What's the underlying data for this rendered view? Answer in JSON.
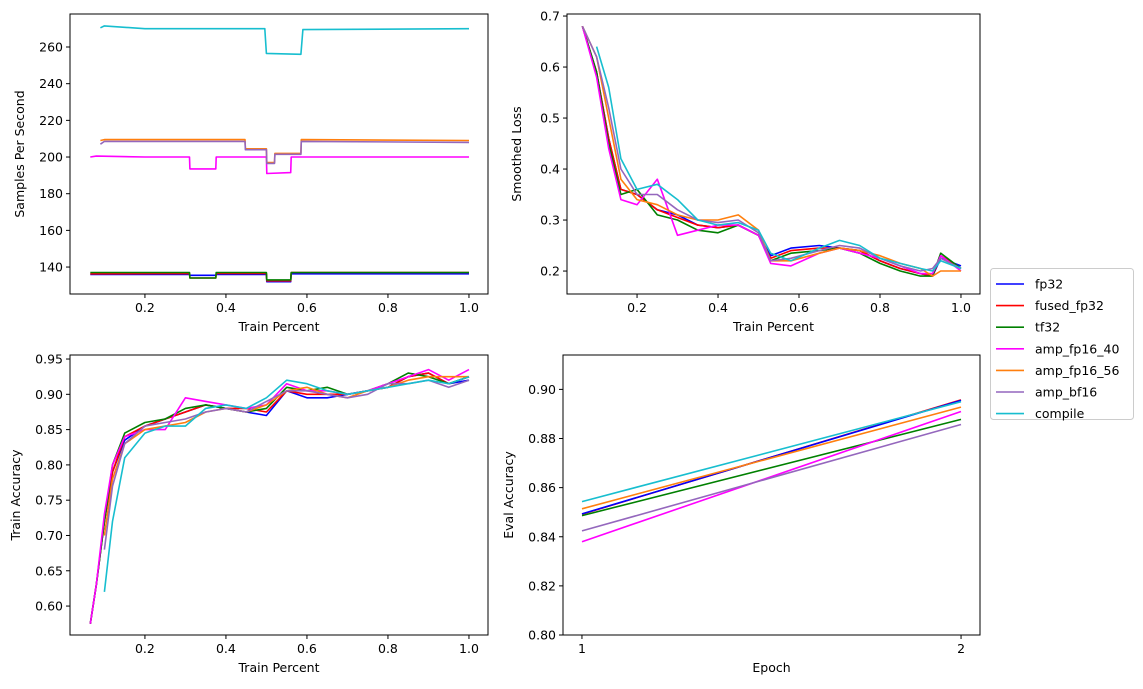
{
  "legend": {
    "placement": "right-center",
    "entries": [
      "fp32",
      "fused_fp32",
      "tf32",
      "amp_fp16_40",
      "amp_fp16_56",
      "amp_bf16",
      "compile"
    ]
  },
  "colors": {
    "fp32": "#0000ff",
    "fused_fp32": "#ff0000",
    "tf32": "#008000",
    "amp_fp16_40": "#ff00ff",
    "amp_fp16_56": "#ff7f0e",
    "amp_bf16": "#9467bd",
    "compile": "#17becf"
  },
  "chart_data": [
    {
      "id": "throughput",
      "type": "line",
      "title": "",
      "xlabel": "Train Percent",
      "ylabel": "Samples Per Second",
      "xlim": [
        0.015,
        1.047
      ],
      "ylim": [
        125.3,
        278
      ],
      "xticks": [
        0.2,
        0.4,
        0.6,
        0.8,
        1.0
      ],
      "xtick_labels": [
        "0.2",
        "0.4",
        "0.6",
        "0.8",
        "1.0"
      ],
      "yticks": [
        140,
        160,
        180,
        200,
        220,
        240,
        260
      ],
      "ytick_labels": [
        "140",
        "160",
        "180",
        "200",
        "220",
        "240",
        "260"
      ],
      "series": [
        {
          "name": "fp32",
          "x": [
            0.065,
            0.31,
            0.311,
            0.375,
            0.376,
            0.5,
            0.501,
            0.56,
            0.561,
            1.0
          ],
          "y": [
            136,
            136,
            135.5,
            135.5,
            136,
            136,
            132,
            132,
            136.3,
            136.3
          ]
        },
        {
          "name": "fused_fp32",
          "x": [
            0.065,
            0.31,
            0.311,
            0.375,
            0.376,
            0.5,
            0.501,
            0.56,
            0.561,
            1.0
          ],
          "y": [
            136.3,
            136.5,
            134,
            134,
            136.5,
            136.5,
            132.5,
            132.5,
            137,
            137
          ]
        },
        {
          "name": "tf32",
          "x": [
            0.065,
            0.31,
            0.311,
            0.375,
            0.376,
            0.5,
            0.501,
            0.56,
            0.561,
            1.0
          ],
          "y": [
            137,
            137,
            134,
            134,
            137,
            137,
            133,
            133,
            137,
            137
          ]
        },
        {
          "name": "amp_fp16_40",
          "x": [
            0.065,
            0.08,
            0.2,
            0.31,
            0.311,
            0.375,
            0.376,
            0.5,
            0.501,
            0.56,
            0.561,
            1.0
          ],
          "y": [
            200,
            200.5,
            200,
            200,
            193.5,
            193.5,
            200,
            200,
            191,
            191.5,
            200,
            200
          ]
        },
        {
          "name": "amp_fp16_56",
          "x": [
            0.09,
            0.1,
            0.447,
            0.448,
            0.5,
            0.501,
            0.52,
            0.521,
            0.585,
            0.586,
            1.0
          ],
          "y": [
            209,
            209.5,
            209.5,
            204.5,
            204.5,
            197,
            197,
            202,
            202,
            209.5,
            209
          ]
        },
        {
          "name": "amp_bf16",
          "x": [
            0.09,
            0.1,
            0.447,
            0.448,
            0.5,
            0.501,
            0.52,
            0.521,
            0.585,
            0.586,
            1.0
          ],
          "y": [
            207,
            208.5,
            208.5,
            204,
            204,
            196.5,
            196.5,
            201.5,
            201.5,
            208.5,
            208
          ]
        },
        {
          "name": "compile",
          "x": [
            0.09,
            0.1,
            0.2,
            0.496,
            0.5,
            0.585,
            0.59,
            1.0
          ],
          "y": [
            270.5,
            271.5,
            270,
            270,
            256.5,
            256,
            269.5,
            270
          ]
        }
      ]
    },
    {
      "id": "loss",
      "type": "line",
      "title": "",
      "xlabel": "Train Percent",
      "ylabel": "Smoothed Loss",
      "xlim": [
        0.027,
        1.047
      ],
      "ylim": [
        0.155,
        0.704
      ],
      "xticks": [
        0.2,
        0.4,
        0.6,
        0.8,
        1.0
      ],
      "xtick_labels": [
        "0.2",
        "0.4",
        "0.6",
        "0.8",
        "1.0"
      ],
      "yticks": [
        0.2,
        0.3,
        0.4,
        0.5,
        0.6,
        0.7
      ],
      "ytick_labels": [
        "0.2",
        "0.3",
        "0.4",
        "0.5",
        "0.6",
        "0.7"
      ],
      "x": [
        0.065,
        0.1,
        0.13,
        0.16,
        0.2,
        0.25,
        0.3,
        0.35,
        0.4,
        0.45,
        0.5,
        0.53,
        0.58,
        0.65,
        0.7,
        0.75,
        0.8,
        0.85,
        0.9,
        0.93,
        0.95,
        1.0
      ],
      "series": [
        {
          "name": "fp32",
          "y": [
            0.68,
            0.59,
            0.46,
            0.36,
            0.35,
            0.32,
            0.31,
            0.29,
            0.285,
            0.29,
            0.27,
            0.23,
            0.245,
            0.25,
            0.245,
            0.24,
            0.22,
            0.205,
            0.195,
            0.19,
            0.225,
            0.21
          ]
        },
        {
          "name": "fused_fp32",
          "y": [
            0.68,
            0.59,
            0.46,
            0.36,
            0.35,
            0.32,
            0.305,
            0.29,
            0.285,
            0.29,
            0.27,
            0.225,
            0.24,
            0.245,
            0.245,
            0.24,
            0.22,
            0.205,
            0.195,
            0.19,
            0.23,
            0.205
          ]
        },
        {
          "name": "tf32",
          "y": [
            0.68,
            0.59,
            0.45,
            0.35,
            0.36,
            0.31,
            0.3,
            0.28,
            0.275,
            0.29,
            0.27,
            0.22,
            0.235,
            0.24,
            0.245,
            0.235,
            0.215,
            0.2,
            0.19,
            0.19,
            0.235,
            0.205
          ]
        },
        {
          "name": "amp_fp16_40",
          "y": [
            0.68,
            0.58,
            0.44,
            0.34,
            0.33,
            0.38,
            0.27,
            0.28,
            0.29,
            0.29,
            0.27,
            0.215,
            0.21,
            0.235,
            0.245,
            0.235,
            0.225,
            0.21,
            0.195,
            0.195,
            0.23,
            0.2
          ]
        },
        {
          "name": "amp_fp16_56",
          "y": [
            0.68,
            0.62,
            0.5,
            0.38,
            0.34,
            0.33,
            0.31,
            0.3,
            0.3,
            0.31,
            0.28,
            0.22,
            0.22,
            0.235,
            0.245,
            0.24,
            0.23,
            0.215,
            0.205,
            0.19,
            0.2,
            0.2
          ]
        },
        {
          "name": "amp_bf16",
          "y": [
            0.68,
            0.62,
            0.52,
            0.4,
            0.35,
            0.35,
            0.32,
            0.3,
            0.295,
            0.3,
            0.275,
            0.22,
            0.225,
            0.24,
            0.25,
            0.245,
            0.225,
            0.21,
            0.2,
            0.205,
            0.225,
            0.205
          ]
        },
        {
          "name": "compile",
          "y": [
            null,
            0.64,
            0.56,
            0.42,
            0.36,
            0.37,
            0.34,
            0.3,
            0.29,
            0.295,
            0.28,
            0.235,
            0.22,
            0.245,
            0.26,
            0.25,
            0.225,
            0.215,
            0.205,
            0.2,
            0.22,
            0.205
          ]
        }
      ]
    },
    {
      "id": "train_acc",
      "type": "line",
      "title": "",
      "xlabel": "Train Percent",
      "ylabel": "Train Accuracy",
      "xlim": [
        0.015,
        1.047
      ],
      "ylim": [
        0.559,
        0.9557
      ],
      "xticks": [
        0.2,
        0.4,
        0.6,
        0.8,
        1.0
      ],
      "xtick_labels": [
        "0.2",
        "0.4",
        "0.6",
        "0.8",
        "1.0"
      ],
      "yticks": [
        0.6,
        0.65,
        0.7,
        0.75,
        0.8,
        0.85,
        0.9,
        0.95
      ],
      "ytick_labels": [
        "0.60",
        "0.65",
        "0.70",
        "0.75",
        "0.80",
        "0.85",
        "0.90",
        "0.95"
      ],
      "x": [
        0.065,
        0.08,
        0.1,
        0.12,
        0.15,
        0.2,
        0.25,
        0.3,
        0.35,
        0.4,
        0.45,
        0.5,
        0.55,
        0.6,
        0.65,
        0.7,
        0.75,
        0.8,
        0.85,
        0.9,
        0.95,
        1.0
      ],
      "series": [
        {
          "name": "fp32",
          "y": [
            0.575,
            0.63,
            0.72,
            0.79,
            0.835,
            0.855,
            0.865,
            0.875,
            0.885,
            0.88,
            0.875,
            0.87,
            0.905,
            0.895,
            0.895,
            0.9,
            0.905,
            0.91,
            0.925,
            0.93,
            0.915,
            0.92
          ]
        },
        {
          "name": "fused_fp32",
          "y": [
            0.575,
            0.63,
            0.72,
            0.79,
            0.84,
            0.855,
            0.865,
            0.875,
            0.885,
            0.88,
            0.88,
            0.875,
            0.905,
            0.9,
            0.9,
            0.9,
            0.905,
            0.91,
            0.925,
            0.93,
            0.915,
            0.925
          ]
        },
        {
          "name": "tf32",
          "y": [
            0.575,
            0.63,
            0.72,
            0.8,
            0.845,
            0.86,
            0.865,
            0.88,
            0.885,
            0.88,
            0.875,
            0.88,
            0.91,
            0.905,
            0.91,
            0.9,
            0.905,
            0.915,
            0.93,
            0.925,
            0.915,
            0.925
          ]
        },
        {
          "name": "amp_fp16_40",
          "y": [
            0.575,
            0.63,
            0.73,
            0.8,
            0.84,
            0.85,
            0.85,
            0.895,
            0.89,
            0.885,
            0.88,
            0.885,
            0.915,
            0.905,
            0.905,
            0.9,
            0.905,
            0.915,
            0.925,
            0.935,
            0.92,
            0.935
          ]
        },
        {
          "name": "amp_fp16_56",
          "y": [
            null,
            null,
            0.7,
            0.78,
            0.83,
            0.85,
            0.855,
            0.86,
            0.875,
            0.88,
            0.875,
            0.885,
            0.905,
            0.91,
            0.9,
            0.895,
            0.905,
            0.91,
            0.92,
            0.925,
            0.925,
            0.925
          ]
        },
        {
          "name": "amp_bf16",
          "y": [
            null,
            null,
            0.68,
            0.77,
            0.83,
            0.855,
            0.86,
            0.865,
            0.875,
            0.88,
            0.875,
            0.89,
            0.905,
            0.905,
            0.9,
            0.895,
            0.9,
            0.915,
            0.915,
            0.92,
            0.91,
            0.92
          ]
        },
        {
          "name": "compile",
          "y": [
            null,
            null,
            0.62,
            0.72,
            0.81,
            0.845,
            0.855,
            0.855,
            0.88,
            0.885,
            0.88,
            0.895,
            0.92,
            0.915,
            0.905,
            0.9,
            0.905,
            0.91,
            0.915,
            0.92,
            0.915,
            0.925
          ]
        }
      ]
    },
    {
      "id": "eval_acc",
      "type": "line",
      "title": "",
      "xlabel": "Epoch",
      "ylabel": "Eval Accuracy",
      "xlim": [
        0.95,
        2.05
      ],
      "ylim": [
        0.8,
        0.914
      ],
      "xticks": [
        1,
        2
      ],
      "xtick_labels": [
        "1",
        "2"
      ],
      "yticks": [
        0.8,
        0.82,
        0.84,
        0.86,
        0.88,
        0.9
      ],
      "ytick_labels": [
        "0.80",
        "0.82",
        "0.84",
        "0.86",
        "0.88",
        "0.90"
      ],
      "x": [
        1,
        2
      ],
      "series": [
        {
          "name": "fused_fp32",
          "y": [
            0.8492,
            0.8957
          ]
        },
        {
          "name": "fp32",
          "y": [
            0.8493,
            0.8955
          ]
        },
        {
          "name": "tf32",
          "y": [
            0.8486,
            0.8878
          ]
        },
        {
          "name": "amp_fp16_40",
          "y": [
            0.838,
            0.891
          ]
        },
        {
          "name": "amp_fp16_56",
          "y": [
            0.8514,
            0.8928
          ]
        },
        {
          "name": "amp_bf16",
          "y": [
            0.8424,
            0.8857
          ]
        },
        {
          "name": "compile",
          "y": [
            0.8543,
            0.895
          ]
        }
      ]
    }
  ]
}
